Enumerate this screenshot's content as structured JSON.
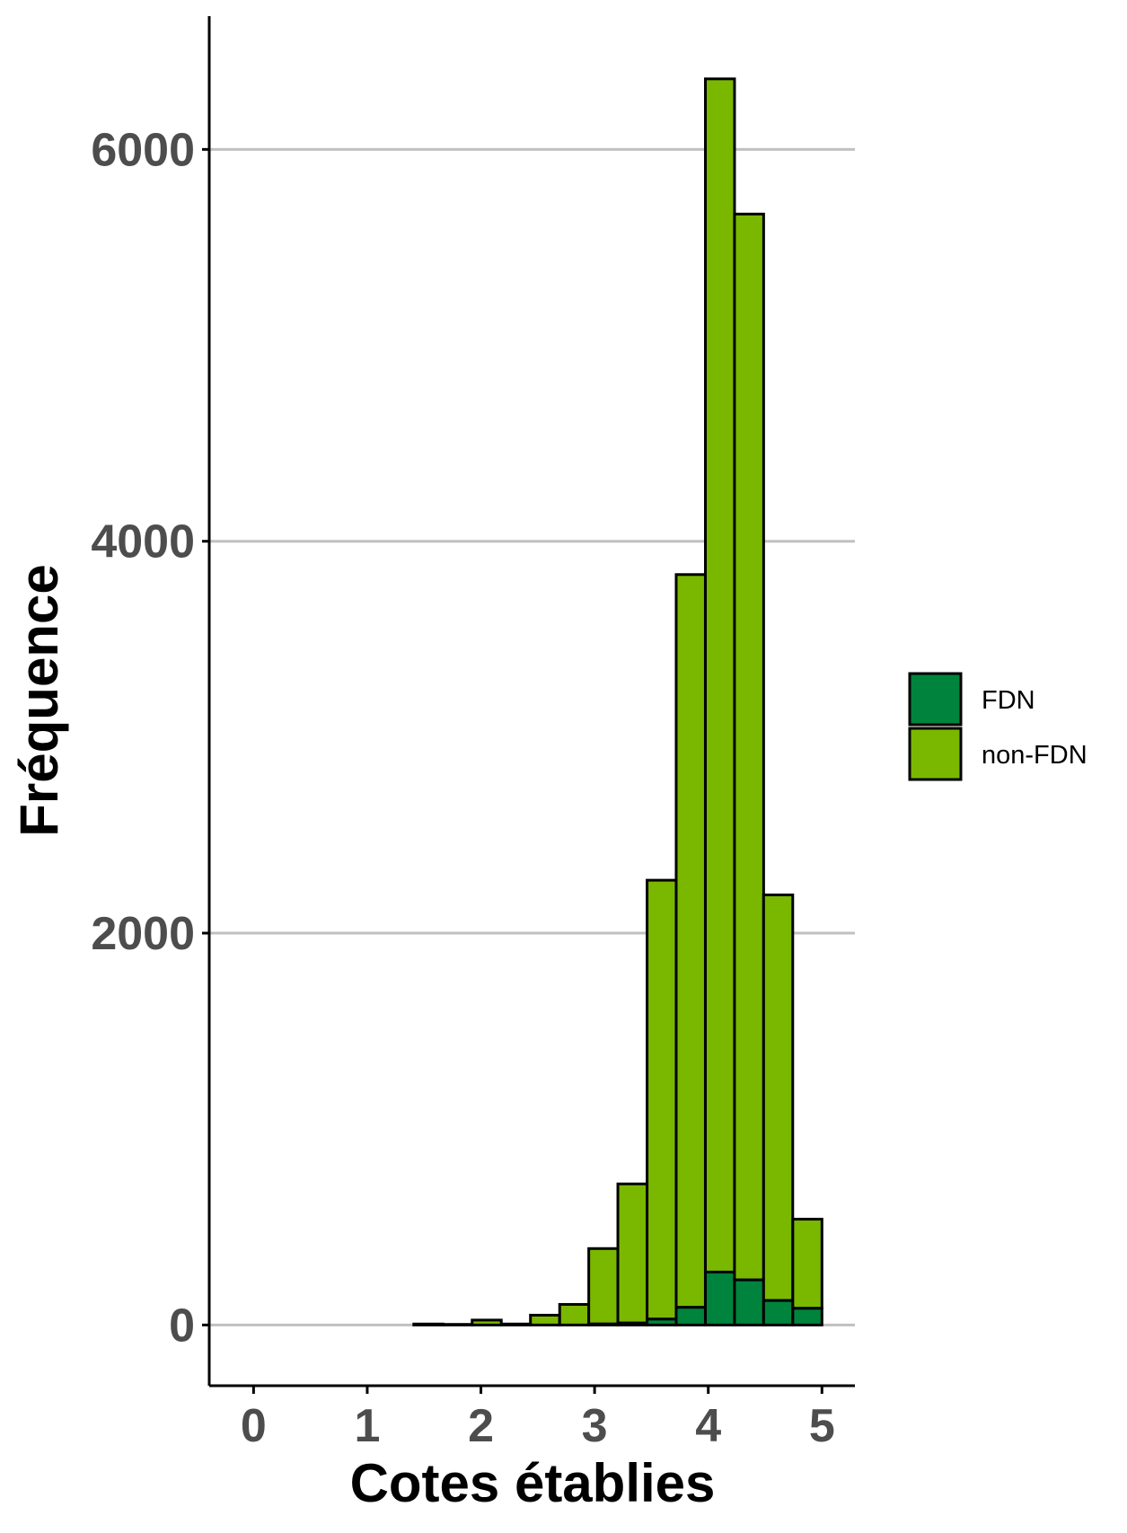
{
  "chart_data": {
    "type": "bar",
    "stacked": true,
    "xlabel": "Cotes établies",
    "ylabel": "Fréquence",
    "xlim": [
      -0.39,
      5.29
    ],
    "ylim": [
      -310,
      6680
    ],
    "x_ticks": [
      0,
      1,
      2,
      3,
      4,
      5
    ],
    "y_ticks": [
      0,
      2000,
      4000,
      6000
    ],
    "grid": "horizontal",
    "legend_position": "right",
    "bin_width": 0.2564,
    "bin_centers": [
      0.0,
      0.256,
      0.513,
      0.769,
      1.026,
      1.282,
      1.538,
      1.795,
      2.051,
      2.308,
      2.564,
      2.821,
      3.077,
      3.333,
      3.59,
      3.846,
      4.103,
      4.359,
      4.615,
      4.872
    ],
    "series": [
      {
        "name": "FDN",
        "color": "#00843d",
        "values": [
          0,
          0,
          0,
          0,
          0,
          0,
          0,
          0,
          0,
          0,
          0,
          0,
          5,
          10,
          30,
          90,
          270,
          230,
          125,
          85
        ]
      },
      {
        "name": "non-FDN",
        "color": "#7ab800",
        "values": [
          0,
          0,
          0,
          0,
          0,
          0,
          5,
          3,
          25,
          5,
          50,
          105,
          385,
          710,
          2240,
          3740,
          6090,
          5440,
          2070,
          455
        ]
      }
    ]
  }
}
